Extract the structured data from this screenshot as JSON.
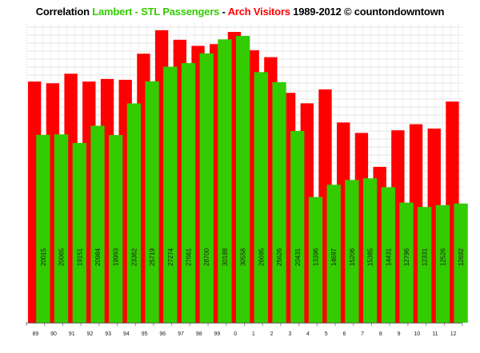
{
  "chart_data": {
    "type": "bar",
    "title": {
      "parts": [
        {
          "text": "Correlation ",
          "color": "#000000"
        },
        {
          "text": "Lambert - STL Passengers",
          "color": "#33cc00"
        },
        {
          "text": " - ",
          "color": "#000000"
        },
        {
          "text": "Arch Visitors",
          "color": "#ff0000"
        },
        {
          "text": " 1989-2012 © countondowntown",
          "color": "#000000"
        }
      ]
    },
    "categories": [
      "89",
      "90",
      "91",
      "92",
      "93",
      "94",
      "95",
      "96",
      "97",
      "98",
      "99",
      "0",
      "1",
      "2",
      "3",
      "4",
      "5",
      "6",
      "7",
      "8",
      "9",
      "10",
      "11",
      "12"
    ],
    "series": [
      {
        "name": "Arch Visitors",
        "color": "#ff0000",
        "values": [
          2770,
          2750,
          2860,
          2770,
          2800,
          2790,
          3090,
          3360,
          3250,
          3180,
          3200,
          3340,
          3130,
          3050,
          2640,
          2520,
          2680,
          2300,
          2180,
          1790,
          2210,
          2280,
          2230,
          2540
        ]
      },
      {
        "name": "Lambert - STL Passengers",
        "color": "#33cc00",
        "values": [
          20015,
          20065,
          19151,
          20984,
          19993,
          23362,
          25719,
          27274,
          27661,
          28700,
          30188,
          30558,
          26695,
          25626,
          20431,
          13396,
          14697,
          15206,
          15385,
          14431,
          12796,
          12331,
          12526,
          12692
        ]
      }
    ],
    "ylim_green": [
      0,
      32000
    ],
    "ylim_red": [
      0,
      3450
    ],
    "grid": true,
    "legend": "none"
  }
}
